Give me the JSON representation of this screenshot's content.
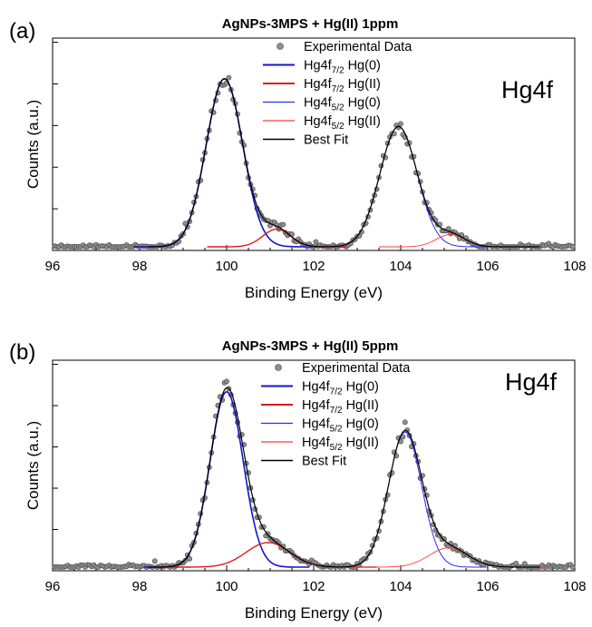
{
  "chart_data": [
    {
      "type": "line",
      "panel_label": "(a)",
      "title": "AgNPs-3MPS + Hg(II) 1ppm",
      "annotation": "Hg4f",
      "xlabel": "Binding Energy (eV)",
      "ylabel": "Counts (a.u.)",
      "xlim": [
        96,
        108
      ],
      "x_ticks": [
        96,
        98,
        100,
        102,
        104,
        106,
        108
      ],
      "y_ticks_labeled": false,
      "legend_position": "top-center",
      "peaks": {
        "hg4f72_hg0": {
          "center": 99.95,
          "height": 0.95,
          "sigma": 0.42
        },
        "hg4f72_hgII": {
          "center": 101.15,
          "height": 0.1,
          "sigma": 0.32
        },
        "hg4f52_hg0": {
          "center": 103.95,
          "height": 0.68,
          "sigma": 0.43
        },
        "hg4f52_hgII": {
          "center": 105.15,
          "height": 0.07,
          "sigma": 0.33
        }
      },
      "series": [
        {
          "name": "Experimental Data",
          "kind": "points",
          "color": "#8f8f8f"
        },
        {
          "name": "Hg4f7/2 Hg(0)",
          "kind": "component",
          "color": "#1515cc"
        },
        {
          "name": "Hg4f7/2 Hg(II)",
          "kind": "component",
          "color": "#dd1a1a"
        },
        {
          "name": "Hg4f5/2 Hg(0)",
          "kind": "component",
          "color": "#2b2bff"
        },
        {
          "name": "Hg4f5/2 Hg(II)",
          "kind": "component",
          "color": "#ff3b3b"
        },
        {
          "name": "Best Fit",
          "kind": "fit",
          "color": "#000000"
        }
      ],
      "legend": [
        {
          "base": "Experimental Data",
          "sub": "",
          "tail": ""
        },
        {
          "base": "Hg4f",
          "sub": "7/2",
          "tail": " Hg(0)"
        },
        {
          "base": "Hg4f",
          "sub": "7/2",
          "tail": " Hg(II)"
        },
        {
          "base": "Hg4f",
          "sub": "5/2",
          "tail": " Hg(0)"
        },
        {
          "base": "Hg4f",
          "sub": "5/2",
          "tail": " Hg(II)"
        },
        {
          "base": "Best Fit",
          "sub": "",
          "tail": ""
        }
      ]
    },
    {
      "type": "line",
      "panel_label": "(b)",
      "title": "AgNPs-3MPS + Hg(II) 5ppm",
      "annotation": "Hg4f",
      "xlabel": "Binding Energy (eV)",
      "ylabel": "Counts (a.u.)",
      "xlim": [
        96,
        108
      ],
      "x_ticks": [
        96,
        98,
        100,
        102,
        104,
        106,
        108
      ],
      "y_ticks_labeled": false,
      "legend_position": "top-center",
      "peaks": {
        "hg4f72_hg0": {
          "center": 100.0,
          "height": 1.0,
          "sigma": 0.38
        },
        "hg4f72_hgII": {
          "center": 100.95,
          "height": 0.14,
          "sigma": 0.5
        },
        "hg4f52_hg0": {
          "center": 104.1,
          "height": 0.77,
          "sigma": 0.38
        },
        "hg4f52_hgII": {
          "center": 105.1,
          "height": 0.11,
          "sigma": 0.45
        }
      },
      "series": [
        {
          "name": "Experimental Data",
          "kind": "points",
          "color": "#8f8f8f"
        },
        {
          "name": "Hg4f7/2 Hg(0)",
          "kind": "component",
          "color": "#1515cc"
        },
        {
          "name": "Hg4f7/2 Hg(II)",
          "kind": "component",
          "color": "#dd1a1a"
        },
        {
          "name": "Hg4f5/2 Hg(0)",
          "kind": "component",
          "color": "#2b2bff"
        },
        {
          "name": "Hg4f5/2 Hg(II)",
          "kind": "component",
          "color": "#ff3b3b"
        },
        {
          "name": "Best Fit",
          "kind": "fit",
          "color": "#000000"
        }
      ],
      "legend": [
        {
          "base": "Experimental Data",
          "sub": "",
          "tail": ""
        },
        {
          "base": "Hg4f",
          "sub": "7/2",
          "tail": " Hg(0)"
        },
        {
          "base": "Hg4f",
          "sub": "7/2",
          "tail": " Hg(II)"
        },
        {
          "base": "Hg4f",
          "sub": "5/2",
          "tail": " Hg(0)"
        },
        {
          "base": "Hg4f",
          "sub": "5/2",
          "tail": " Hg(II)"
        },
        {
          "base": "Best Fit",
          "sub": "",
          "tail": ""
        }
      ]
    }
  ]
}
